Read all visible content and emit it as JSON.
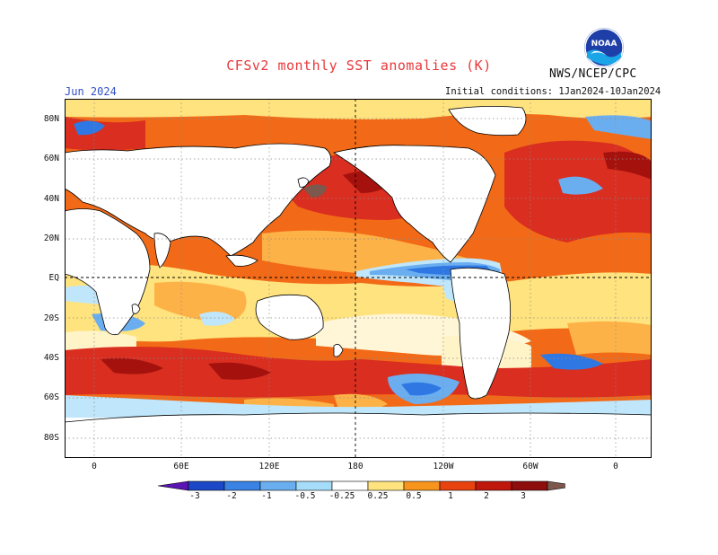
{
  "header": {
    "title": "CFSv2 monthly SST anomalies (K)",
    "agency": "NWS/NCEP/CPC",
    "logo_text": "NOAA",
    "month": "Jun 2024",
    "initial_conditions": "Initial conditions: 1Jan2024-10Jan2024"
  },
  "map": {
    "lat_labels": [
      "80N",
      "60N",
      "40N",
      "20N",
      "EQ",
      "20S",
      "40S",
      "60S",
      "80S"
    ],
    "lon_labels": [
      "0",
      "60E",
      "120E",
      "180",
      "120W",
      "60W",
      "0"
    ],
    "colors": {
      "land": "#ffffff",
      "coast": "#000000",
      "grid": "#8a8a8a",
      "warm_orange": "#f26a17",
      "warm_red": "#d92e20",
      "warm_darkred": "#a5120e",
      "warm_yellow": "#ffe37e",
      "warm_lightorange": "#fdb247",
      "cool_light": "#bfe6fa",
      "cool_mid": "#6aaef0",
      "cool_blue": "#2f78e3",
      "extreme_brown": "#7c584d"
    }
  },
  "colorbar": {
    "tick_labels": [
      "-3",
      "-2",
      "-1",
      "-0.5",
      "-0.25",
      "0.25",
      "0.5",
      "1",
      "2",
      "3"
    ],
    "bins": [
      {
        "color": "#5a15b3"
      },
      {
        "color": "#1c48c8"
      },
      {
        "color": "#3a82e3"
      },
      {
        "color": "#6aaef0"
      },
      {
        "color": "#a4dcf9"
      },
      {
        "color": "#ffffff"
      },
      {
        "color": "#ffe37e"
      },
      {
        "color": "#f7941c"
      },
      {
        "color": "#e8430f"
      },
      {
        "color": "#c0170d"
      },
      {
        "color": "#8e0d0d"
      },
      {
        "color": "#7c584d"
      }
    ]
  }
}
